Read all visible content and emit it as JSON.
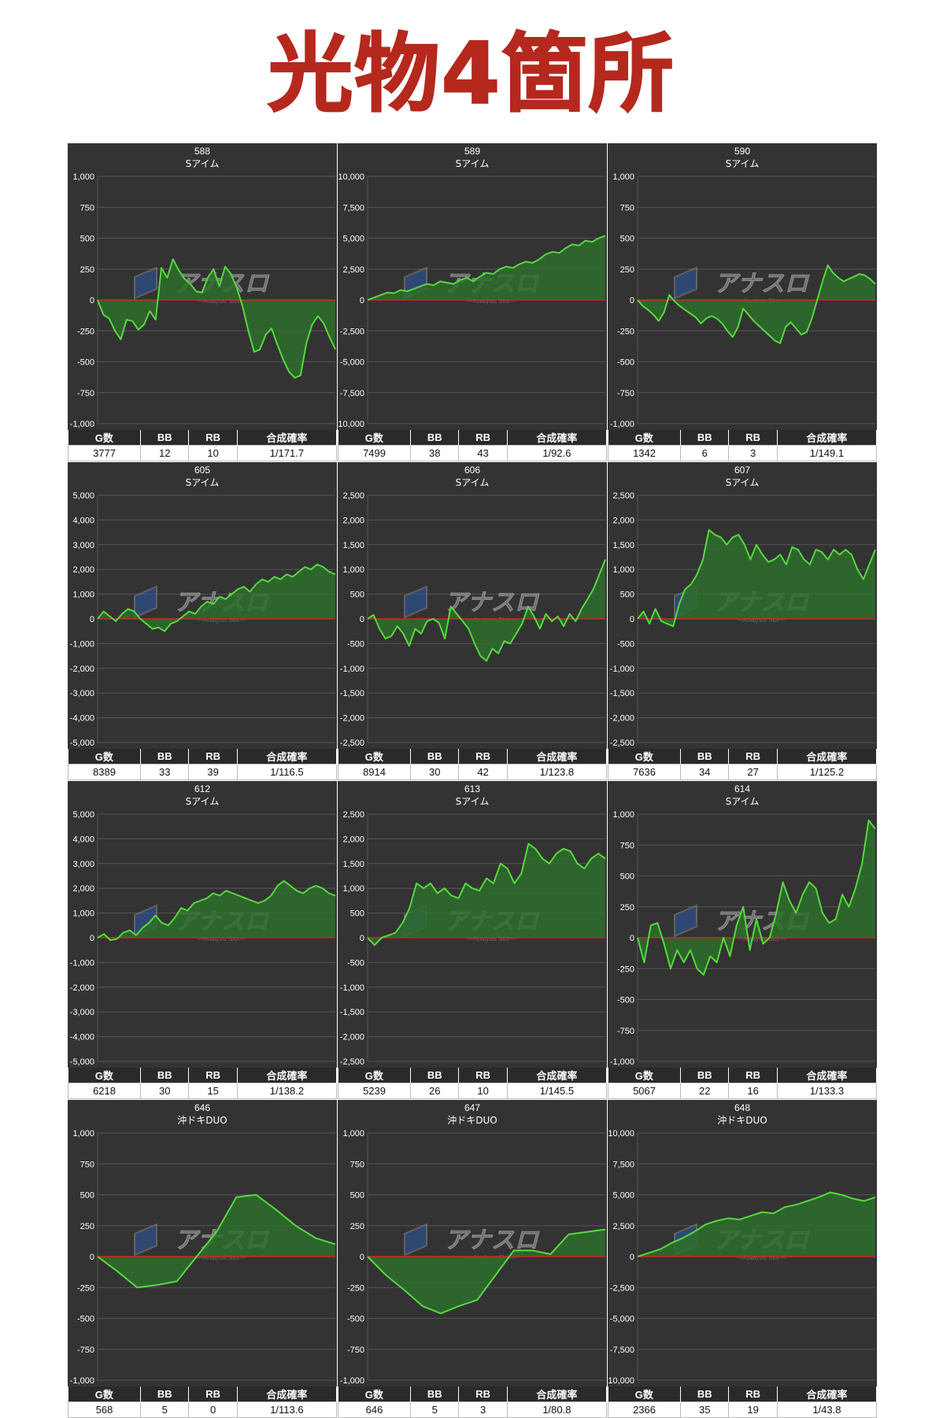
{
  "page_title": "光物4箇所",
  "stats_headers": {
    "g": "G数",
    "bb": "BB",
    "rb": "RB",
    "rate": "合成確率"
  },
  "colors": {
    "line": "#55d93f",
    "fill": "#2e6e2b",
    "zero_line": "#cc2b1f",
    "panel_bg": "#333333",
    "grid": "#555555"
  },
  "watermark": {
    "text": "アナスロ",
    "sub": "Analysis Slot"
  },
  "chart_data": [
    {
      "type": "area",
      "machine": "588",
      "model": "Sアイム",
      "ylim": [
        -1000,
        1000
      ],
      "ticks": [
        "1,000",
        "750",
        "500",
        "250",
        "0",
        "-250",
        "-500",
        "-750",
        "-1,000"
      ],
      "values": [
        0,
        -120,
        -150,
        -250,
        -320,
        -160,
        -170,
        -240,
        -200,
        -90,
        -160,
        260,
        180,
        330,
        240,
        170,
        130,
        70,
        60,
        180,
        250,
        110,
        270,
        210,
        100,
        -50,
        -250,
        -420,
        -400,
        -280,
        -230,
        -360,
        -480,
        -580,
        -630,
        -610,
        -350,
        -200,
        -130,
        -190,
        -300,
        -400
      ],
      "stats": {
        "g": "3777",
        "bb": "12",
        "rb": "10",
        "rate": "1/171.7"
      }
    },
    {
      "type": "area",
      "machine": "589",
      "model": "Sアイム",
      "ylim": [
        -10000,
        10000
      ],
      "ticks": [
        "10,000",
        "7,500",
        "5,000",
        "2,500",
        "0",
        "-2,500",
        "-5,000",
        "-7,500",
        "-10,000"
      ],
      "values": [
        0,
        200,
        400,
        600,
        550,
        800,
        700,
        900,
        1100,
        1300,
        1200,
        1500,
        1400,
        1300,
        1600,
        1800,
        1500,
        1900,
        2200,
        2100,
        2500,
        2700,
        2600,
        2900,
        3100,
        3000,
        3300,
        3700,
        3900,
        3800,
        4200,
        4500,
        4400,
        4800,
        4700,
        5000,
        5200
      ],
      "stats": {
        "g": "7499",
        "bb": "38",
        "rb": "43",
        "rate": "1/92.6"
      }
    },
    {
      "type": "area",
      "machine": "590",
      "model": "Sアイム",
      "ylim": [
        -1000,
        1000
      ],
      "ticks": [
        "1,000",
        "750",
        "500",
        "250",
        "0",
        "-250",
        "-500",
        "-750",
        "-1,000"
      ],
      "values": [
        0,
        -50,
        -80,
        -120,
        -170,
        -100,
        40,
        -10,
        -50,
        -80,
        -110,
        -140,
        -190,
        -150,
        -130,
        -150,
        -190,
        -250,
        -300,
        -220,
        -70,
        -120,
        -170,
        -210,
        -250,
        -290,
        -330,
        -350,
        -220,
        -180,
        -230,
        -280,
        -260,
        -150,
        0,
        150,
        280,
        220,
        180,
        150,
        170,
        190,
        210,
        200,
        170,
        130
      ],
      "stats": {
        "g": "1342",
        "bb": "6",
        "rb": "3",
        "rate": "1/149.1"
      }
    },
    {
      "type": "area",
      "machine": "605",
      "model": "Sアイム",
      "ylim": [
        -5000,
        5000
      ],
      "ticks": [
        "5,000",
        "4,000",
        "3,000",
        "2,000",
        "1,000",
        "0",
        "-1,000",
        "-2,000",
        "-3,000",
        "-4,000",
        "-5,000"
      ],
      "values": [
        0,
        300,
        100,
        -100,
        200,
        400,
        300,
        0,
        -200,
        -400,
        -350,
        -500,
        -200,
        -100,
        100,
        300,
        200,
        500,
        700,
        600,
        900,
        800,
        1000,
        1200,
        1300,
        1100,
        1400,
        1600,
        1500,
        1700,
        1600,
        1800,
        1700,
        1900,
        2100,
        2000,
        2200,
        2100,
        1900,
        1800
      ],
      "stats": {
        "g": "8389",
        "bb": "33",
        "rb": "39",
        "rate": "1/116.5"
      }
    },
    {
      "type": "area",
      "machine": "606",
      "model": "Sアイム",
      "ylim": [
        -2500,
        2500
      ],
      "ticks": [
        "2,500",
        "2,000",
        "1,500",
        "1,000",
        "500",
        "0",
        "-500",
        "-1,000",
        "-1,500",
        "-2,000",
        "-2,500"
      ],
      "values": [
        0,
        80,
        -200,
        -400,
        -350,
        -150,
        -300,
        -550,
        -200,
        -300,
        -50,
        0,
        -80,
        -400,
        250,
        100,
        -50,
        -200,
        -500,
        -750,
        -850,
        -600,
        -700,
        -450,
        -500,
        -300,
        -100,
        250,
        50,
        -200,
        100,
        -50,
        50,
        -150,
        100,
        -50,
        200,
        400,
        600,
        900,
        1200
      ],
      "stats": {
        "g": "8914",
        "bb": "30",
        "rb": "42",
        "rate": "1/123.8"
      }
    },
    {
      "type": "area",
      "machine": "607",
      "model": "Sアイム",
      "ylim": [
        -2500,
        2500
      ],
      "ticks": [
        "2,500",
        "2,000",
        "1,500",
        "1,000",
        "500",
        "0",
        "-500",
        "-1,000",
        "-1,500",
        "-2,000",
        "-2,500"
      ],
      "values": [
        0,
        150,
        -100,
        200,
        -50,
        -100,
        -150,
        300,
        600,
        700,
        900,
        1200,
        1800,
        1700,
        1650,
        1500,
        1650,
        1700,
        1500,
        1200,
        1500,
        1300,
        1150,
        1200,
        1300,
        1100,
        1450,
        1400,
        1200,
        1100,
        1400,
        1350,
        1200,
        1400,
        1300,
        1400,
        1300,
        1000,
        800,
        1100,
        1400
      ],
      "stats": {
        "g": "7636",
        "bb": "34",
        "rb": "27",
        "rate": "1/125.2"
      }
    },
    {
      "type": "area",
      "machine": "612",
      "model": "Sアイム",
      "ylim": [
        -5000,
        5000
      ],
      "ticks": [
        "5,000",
        "4,000",
        "3,000",
        "2,000",
        "1,000",
        "0",
        "-1,000",
        "-2,000",
        "-3,000",
        "-4,000",
        "-5,000"
      ],
      "values": [
        0,
        150,
        -100,
        -50,
        200,
        300,
        100,
        400,
        600,
        900,
        600,
        500,
        800,
        1200,
        1100,
        1400,
        1500,
        1600,
        1800,
        1700,
        1900,
        1800,
        1700,
        1600,
        1500,
        1400,
        1500,
        1700,
        2100,
        2300,
        2100,
        1900,
        1800,
        2000,
        2100,
        2000,
        1800,
        1700
      ],
      "stats": {
        "g": "6218",
        "bb": "30",
        "rb": "15",
        "rate": "1/138.2"
      }
    },
    {
      "type": "area",
      "machine": "613",
      "model": "Sアイム",
      "ylim": [
        -2500,
        2500
      ],
      "ticks": [
        "2,500",
        "2,000",
        "1,500",
        "1,000",
        "500",
        "0",
        "-500",
        "-1,000",
        "-1,500",
        "-2,000",
        "-2,500"
      ],
      "values": [
        0,
        -150,
        0,
        50,
        100,
        300,
        600,
        1100,
        1000,
        1100,
        900,
        1000,
        850,
        800,
        1100,
        1000,
        950,
        1200,
        1100,
        1500,
        1400,
        1100,
        1300,
        1900,
        1800,
        1600,
        1500,
        1700,
        1800,
        1750,
        1500,
        1400,
        1600,
        1700,
        1600
      ],
      "stats": {
        "g": "5239",
        "bb": "26",
        "rb": "10",
        "rate": "1/145.5"
      }
    },
    {
      "type": "area",
      "machine": "614",
      "model": "Sアイム",
      "ylim": [
        -1000,
        1000
      ],
      "ticks": [
        "1,000",
        "750",
        "500",
        "250",
        "0",
        "-250",
        "-500",
        "-750",
        "-1,000"
      ],
      "values": [
        0,
        -200,
        100,
        120,
        -50,
        -250,
        -100,
        -200,
        -100,
        -250,
        -300,
        -150,
        -200,
        0,
        -150,
        100,
        250,
        -100,
        150,
        -50,
        0,
        200,
        450,
        300,
        200,
        350,
        450,
        400,
        200,
        120,
        150,
        350,
        250,
        400,
        600,
        950,
        880
      ],
      "stats": {
        "g": "5067",
        "bb": "22",
        "rb": "16",
        "rate": "1/133.3"
      }
    },
    {
      "type": "area",
      "machine": "646",
      "model": "沖ドキDUO",
      "ylim": [
        -1000,
        1000
      ],
      "ticks": [
        "1,000",
        "750",
        "500",
        "250",
        "0",
        "-250",
        "-500",
        "-750",
        "-1,000"
      ],
      "values": [
        0,
        -120,
        -250,
        -230,
        -200,
        0,
        200,
        480,
        500,
        380,
        250,
        150,
        100
      ],
      "stats": {
        "g": "568",
        "bb": "5",
        "rb": "0",
        "rate": "1/113.6"
      }
    },
    {
      "type": "area",
      "machine": "647",
      "model": "沖ドキDUO",
      "ylim": [
        -1000,
        1000
      ],
      "ticks": [
        "1,000",
        "750",
        "500",
        "250",
        "0",
        "-250",
        "-500",
        "-750",
        "-1,000"
      ],
      "values": [
        0,
        -150,
        -270,
        -400,
        -460,
        -400,
        -350,
        -150,
        50,
        50,
        20,
        180,
        200,
        220
      ],
      "stats": {
        "g": "646",
        "bb": "5",
        "rb": "3",
        "rate": "1/80.8"
      }
    },
    {
      "type": "area",
      "machine": "648",
      "model": "沖ドキDUO",
      "ylim": [
        -10000,
        10000
      ],
      "ticks": [
        "10,000",
        "7,500",
        "5,000",
        "2,500",
        "0",
        "-2,500",
        "-5,000",
        "-7,500",
        "-10,000"
      ],
      "values": [
        0,
        300,
        600,
        1100,
        1500,
        2000,
        2600,
        2900,
        3100,
        3000,
        3300,
        3600,
        3500,
        4000,
        4200,
        4500,
        4800,
        5200,
        5000,
        4700,
        4500,
        4800
      ],
      "stats": {
        "g": "2366",
        "bb": "35",
        "rb": "19",
        "rate": "1/43.8"
      }
    }
  ]
}
